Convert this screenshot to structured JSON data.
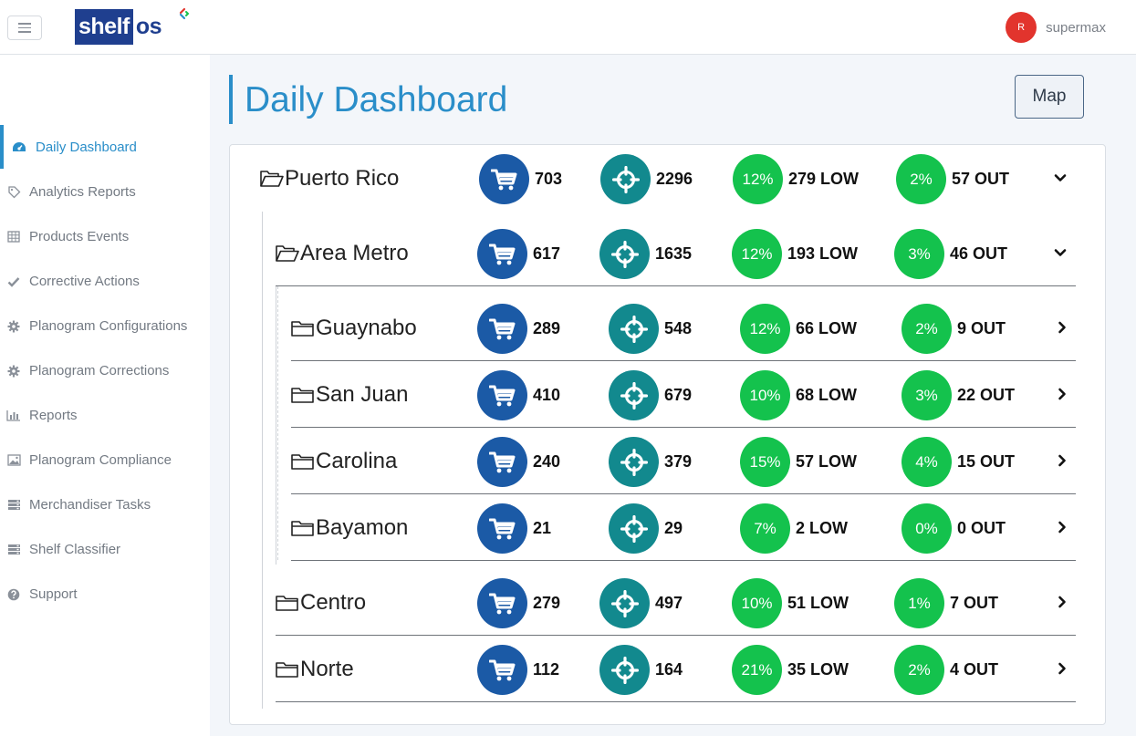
{
  "brand": {
    "logo_shelf": "shelf",
    "logo_os": "os"
  },
  "user": {
    "avatar_initial": "R",
    "name": "supermax"
  },
  "sidebar": {
    "items": [
      {
        "label": "Daily Dashboard",
        "icon": "dashboard-icon",
        "active": true
      },
      {
        "label": "Analytics Reports",
        "icon": "tag-icon"
      },
      {
        "label": "Products Events",
        "icon": "table-icon"
      },
      {
        "label": "Corrective Actions",
        "icon": "check-icon"
      },
      {
        "label": "Planogram Configurations",
        "icon": "gear-icon"
      },
      {
        "label": "Planogram Corrections",
        "icon": "gear-icon"
      },
      {
        "label": "Reports",
        "icon": "bar-chart-icon"
      },
      {
        "label": "Planogram Compliance",
        "icon": "image-icon"
      },
      {
        "label": "Merchandiser Tasks",
        "icon": "server-icon"
      },
      {
        "label": "Shelf Classifier",
        "icon": "server-icon"
      },
      {
        "label": "Support",
        "icon": "question-icon"
      }
    ]
  },
  "page": {
    "title": "Daily Dashboard",
    "map_button": "Map"
  },
  "colors": {
    "accent": "#2a8ec9",
    "cart": "#1b5aa6",
    "target": "#12898e",
    "pct": "#14c24d"
  },
  "rows": [
    {
      "name": "Puerto Rico",
      "level": 0,
      "open": true,
      "cart": "703",
      "target": "2296",
      "low_pct": "12%",
      "low": "279 LOW",
      "out_pct": "2%",
      "out": "57 OUT"
    },
    {
      "name": "Area Metro",
      "level": 1,
      "open": true,
      "cart": "617",
      "target": "1635",
      "low_pct": "12%",
      "low": "193 LOW",
      "out_pct": "3%",
      "out": "46 OUT"
    },
    {
      "name": "Guaynabo",
      "level": 2,
      "open": false,
      "cart": "289",
      "target": "548",
      "low_pct": "12%",
      "low": "66 LOW",
      "out_pct": "2%",
      "out": "9 OUT"
    },
    {
      "name": "San Juan",
      "level": 2,
      "open": false,
      "cart": "410",
      "target": "679",
      "low_pct": "10%",
      "low": "68 LOW",
      "out_pct": "3%",
      "out": "22 OUT"
    },
    {
      "name": "Carolina",
      "level": 2,
      "open": false,
      "cart": "240",
      "target": "379",
      "low_pct": "15%",
      "low": "57 LOW",
      "out_pct": "4%",
      "out": "15 OUT"
    },
    {
      "name": "Bayamon",
      "level": 2,
      "open": false,
      "cart": "21",
      "target": "29",
      "low_pct": "7%",
      "low": "2 LOW",
      "out_pct": "0%",
      "out": "0 OUT"
    },
    {
      "name": "Centro",
      "level": 1,
      "open": false,
      "cart": "279",
      "target": "497",
      "low_pct": "10%",
      "low": "51 LOW",
      "out_pct": "1%",
      "out": "7 OUT"
    },
    {
      "name": "Norte",
      "level": 1,
      "open": false,
      "cart": "112",
      "target": "164",
      "low_pct": "21%",
      "low": "35 LOW",
      "out_pct": "2%",
      "out": "4 OUT"
    }
  ]
}
